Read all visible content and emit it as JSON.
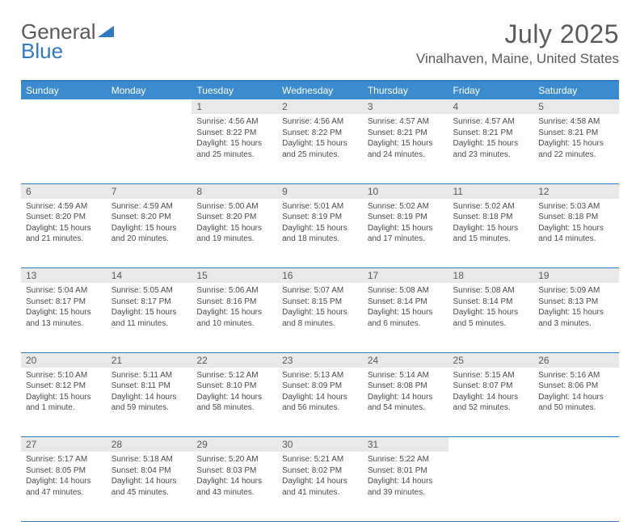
{
  "logo": {
    "text1": "General",
    "text2": "Blue"
  },
  "title": "July 2025",
  "location": "Vinalhaven, Maine, United States",
  "colors": {
    "header_bg": "#3b8bce",
    "header_text": "#ffffff",
    "border": "#2f7ac0",
    "daynum_bg": "#e9e9e9",
    "text": "#5a5a5a",
    "body_text": "#4a4a4a"
  },
  "weekdays": [
    "Sunday",
    "Monday",
    "Tuesday",
    "Wednesday",
    "Thursday",
    "Friday",
    "Saturday"
  ],
  "weeks": [
    [
      null,
      null,
      {
        "n": "1",
        "sr": "4:56 AM",
        "ss": "8:22 PM",
        "dl": "15 hours and 25 minutes."
      },
      {
        "n": "2",
        "sr": "4:56 AM",
        "ss": "8:22 PM",
        "dl": "15 hours and 25 minutes."
      },
      {
        "n": "3",
        "sr": "4:57 AM",
        "ss": "8:21 PM",
        "dl": "15 hours and 24 minutes."
      },
      {
        "n": "4",
        "sr": "4:57 AM",
        "ss": "8:21 PM",
        "dl": "15 hours and 23 minutes."
      },
      {
        "n": "5",
        "sr": "4:58 AM",
        "ss": "8:21 PM",
        "dl": "15 hours and 22 minutes."
      }
    ],
    [
      {
        "n": "6",
        "sr": "4:59 AM",
        "ss": "8:20 PM",
        "dl": "15 hours and 21 minutes."
      },
      {
        "n": "7",
        "sr": "4:59 AM",
        "ss": "8:20 PM",
        "dl": "15 hours and 20 minutes."
      },
      {
        "n": "8",
        "sr": "5:00 AM",
        "ss": "8:20 PM",
        "dl": "15 hours and 19 minutes."
      },
      {
        "n": "9",
        "sr": "5:01 AM",
        "ss": "8:19 PM",
        "dl": "15 hours and 18 minutes."
      },
      {
        "n": "10",
        "sr": "5:02 AM",
        "ss": "8:19 PM",
        "dl": "15 hours and 17 minutes."
      },
      {
        "n": "11",
        "sr": "5:02 AM",
        "ss": "8:18 PM",
        "dl": "15 hours and 15 minutes."
      },
      {
        "n": "12",
        "sr": "5:03 AM",
        "ss": "8:18 PM",
        "dl": "15 hours and 14 minutes."
      }
    ],
    [
      {
        "n": "13",
        "sr": "5:04 AM",
        "ss": "8:17 PM",
        "dl": "15 hours and 13 minutes."
      },
      {
        "n": "14",
        "sr": "5:05 AM",
        "ss": "8:17 PM",
        "dl": "15 hours and 11 minutes."
      },
      {
        "n": "15",
        "sr": "5:06 AM",
        "ss": "8:16 PM",
        "dl": "15 hours and 10 minutes."
      },
      {
        "n": "16",
        "sr": "5:07 AM",
        "ss": "8:15 PM",
        "dl": "15 hours and 8 minutes."
      },
      {
        "n": "17",
        "sr": "5:08 AM",
        "ss": "8:14 PM",
        "dl": "15 hours and 6 minutes."
      },
      {
        "n": "18",
        "sr": "5:08 AM",
        "ss": "8:14 PM",
        "dl": "15 hours and 5 minutes."
      },
      {
        "n": "19",
        "sr": "5:09 AM",
        "ss": "8:13 PM",
        "dl": "15 hours and 3 minutes."
      }
    ],
    [
      {
        "n": "20",
        "sr": "5:10 AM",
        "ss": "8:12 PM",
        "dl": "15 hours and 1 minute."
      },
      {
        "n": "21",
        "sr": "5:11 AM",
        "ss": "8:11 PM",
        "dl": "14 hours and 59 minutes."
      },
      {
        "n": "22",
        "sr": "5:12 AM",
        "ss": "8:10 PM",
        "dl": "14 hours and 58 minutes."
      },
      {
        "n": "23",
        "sr": "5:13 AM",
        "ss": "8:09 PM",
        "dl": "14 hours and 56 minutes."
      },
      {
        "n": "24",
        "sr": "5:14 AM",
        "ss": "8:08 PM",
        "dl": "14 hours and 54 minutes."
      },
      {
        "n": "25",
        "sr": "5:15 AM",
        "ss": "8:07 PM",
        "dl": "14 hours and 52 minutes."
      },
      {
        "n": "26",
        "sr": "5:16 AM",
        "ss": "8:06 PM",
        "dl": "14 hours and 50 minutes."
      }
    ],
    [
      {
        "n": "27",
        "sr": "5:17 AM",
        "ss": "8:05 PM",
        "dl": "14 hours and 47 minutes."
      },
      {
        "n": "28",
        "sr": "5:18 AM",
        "ss": "8:04 PM",
        "dl": "14 hours and 45 minutes."
      },
      {
        "n": "29",
        "sr": "5:20 AM",
        "ss": "8:03 PM",
        "dl": "14 hours and 43 minutes."
      },
      {
        "n": "30",
        "sr": "5:21 AM",
        "ss": "8:02 PM",
        "dl": "14 hours and 41 minutes."
      },
      {
        "n": "31",
        "sr": "5:22 AM",
        "ss": "8:01 PM",
        "dl": "14 hours and 39 minutes."
      },
      null,
      null
    ]
  ],
  "labels": {
    "sunrise": "Sunrise:",
    "sunset": "Sunset:",
    "daylight": "Daylight:"
  }
}
